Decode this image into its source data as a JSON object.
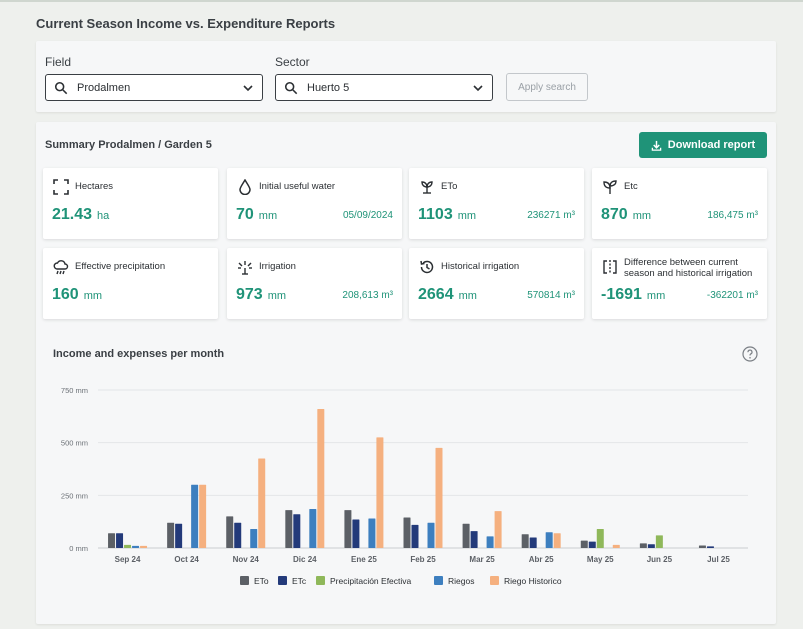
{
  "page": {
    "title": "Current Season Income vs. Expenditure Reports"
  },
  "filters": {
    "field_label": "Field",
    "field_value": "Prodalmen",
    "sector_label": "Sector",
    "sector_value": "Huerto 5",
    "apply_label": "Apply search"
  },
  "summary": {
    "title": "Summary Prodalmen / Garden 5",
    "download_label": "Download report",
    "cards": [
      {
        "icon": "expand-icon",
        "label": "Hectares",
        "value": "21.43",
        "unit": "ha",
        "secondary": ""
      },
      {
        "icon": "water-drop-icon",
        "label": "Initial useful water",
        "value": "70",
        "unit": "mm",
        "secondary": "05/09/2024"
      },
      {
        "icon": "eto-plant-icon",
        "label": "ETo",
        "value": "1103",
        "unit": "mm",
        "secondary": "236271 m³"
      },
      {
        "icon": "sprout-icon",
        "label": "Etc",
        "value": "870",
        "unit": "mm",
        "secondary": "186,475 m³"
      },
      {
        "icon": "rain-cloud-icon",
        "label": "Effective precipitation",
        "value": "160",
        "unit": "mm",
        "secondary": ""
      },
      {
        "icon": "sprinkler-icon",
        "label": "Irrigation",
        "value": "973",
        "unit": "mm",
        "secondary": "208,613 m³"
      },
      {
        "icon": "history-icon",
        "label": "Historical irrigation",
        "value": "2664",
        "unit": "mm",
        "secondary": "570814 m³"
      },
      {
        "icon": "compare-icon",
        "label": "Difference between current season and historical irrigation",
        "value": "-1691",
        "unit": "mm",
        "secondary": "-362201 m³"
      }
    ]
  },
  "chart_section": {
    "title": "Income and expenses per month"
  },
  "chart_data": {
    "type": "bar",
    "title": "Income and expenses per month",
    "categories": [
      "Sep 24",
      "Oct 24",
      "Nov 24",
      "Dic 24",
      "Ene 25",
      "Feb 25",
      "Mar 25",
      "Abr 25",
      "May 25",
      "Jun 25",
      "Jul 25"
    ],
    "ylim": [
      0,
      750
    ],
    "yticks": [
      0,
      250,
      500,
      750
    ],
    "ytick_labels": [
      "0 mm",
      "250 mm",
      "500 mm",
      "750 mm"
    ],
    "grid": true,
    "legend": "bottom",
    "series": [
      {
        "name": "ETo",
        "color": "#5c6066",
        "values": [
          70,
          120,
          150,
          180,
          180,
          145,
          115,
          65,
          35,
          22,
          12
        ]
      },
      {
        "name": "ETc",
        "color": "#233a7a",
        "values": [
          70,
          115,
          120,
          160,
          135,
          110,
          80,
          50,
          30,
          18,
          8
        ]
      },
      {
        "name": "Precipitación Efectiva",
        "color": "#8fb85a",
        "values": [
          15,
          0,
          0,
          0,
          0,
          0,
          0,
          0,
          90,
          60,
          0
        ]
      },
      {
        "name": "Riegos",
        "color": "#3d7fbf",
        "values": [
          10,
          300,
          90,
          185,
          140,
          120,
          55,
          75,
          0,
          0,
          0
        ]
      },
      {
        "name": "Riego Historico",
        "color": "#f5b07f",
        "values": [
          10,
          300,
          425,
          660,
          525,
          475,
          175,
          70,
          15,
          0,
          0
        ]
      }
    ]
  }
}
